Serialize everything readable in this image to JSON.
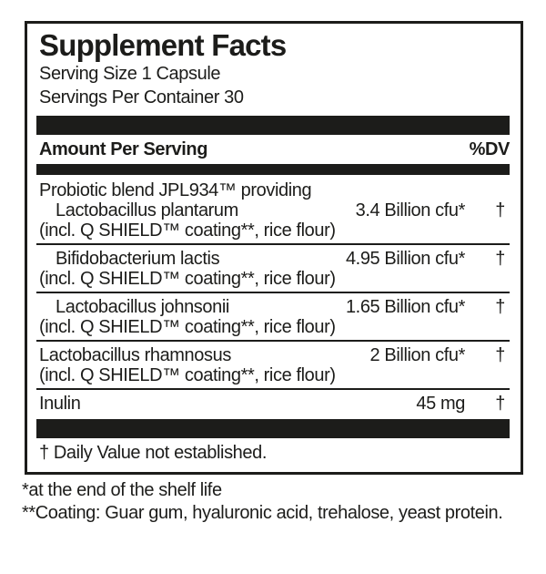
{
  "label": {
    "title": "Supplement Facts",
    "serving_size": "Serving Size 1 Capsule",
    "servings_per_container": "Servings Per Container 30",
    "columns": {
      "left": "Amount Per Serving",
      "right": "%DV"
    },
    "blend_heading": "Probiotic blend JPL934™ providing",
    "incl_note": "(incl. Q SHIELD™ coating**, rice flour)",
    "rows": [
      {
        "name": "Lactobacillus plantarum",
        "amount": "3.4 Billion cfu*",
        "dv": "†"
      },
      {
        "name": "Bifidobacterium lactis",
        "amount": "4.95 Billion cfu*",
        "dv": "†"
      },
      {
        "name": "Lactobacillus johnsonii",
        "amount": "1.65 Billion cfu*",
        "dv": "†"
      },
      {
        "name": "Lactobacillus rhamnosus",
        "amount": "2 Billion cfu*",
        "dv": "†"
      },
      {
        "name": "Inulin",
        "amount": "45 mg",
        "dv": "†"
      }
    ],
    "daily_value_note": "† Daily Value not established."
  },
  "footnotes": {
    "shelf_life": "*at the end of the shelf life",
    "coating": "**Coating: Guar gum, hyaluronic acid, trehalose, yeast protein."
  },
  "colors": {
    "ink": "#1c1c1a",
    "background": "#ffffff"
  }
}
